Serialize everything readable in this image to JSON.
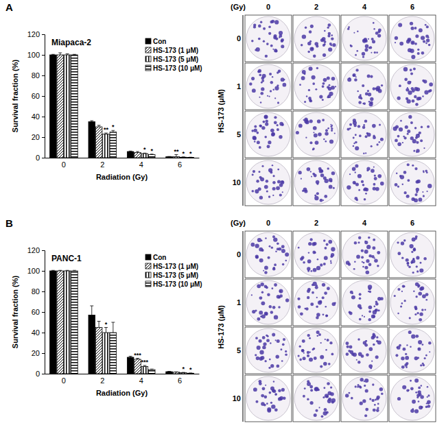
{
  "chart_data": [
    {
      "type": "bar",
      "panel": "A",
      "title": "Miapaca-2",
      "x_label": "Radiation (Gy)",
      "y_label": "Survival fraction (%)",
      "categories": [
        "0",
        "2",
        "4",
        "6"
      ],
      "ylim": [
        0,
        120
      ],
      "yticks": [
        0,
        20,
        40,
        60,
        80,
        100,
        120
      ],
      "grid": false,
      "legend": "upper right",
      "series": [
        {
          "name": "Con",
          "color": "#000000",
          "values": [
            100,
            35,
            6,
            1
          ],
          "errors": [
            0.5,
            1,
            0.5,
            0.2
          ],
          "significance": [
            null,
            null,
            null,
            null
          ]
        },
        {
          "name": "HS-173 (1 μM)",
          "color": "#000000",
          "values": [
            100,
            30,
            5,
            1
          ],
          "errors": [
            2,
            1.5,
            1,
            2
          ],
          "significance": [
            null,
            null,
            null,
            "**"
          ]
        },
        {
          "name": "HS-173 (5 μM)",
          "color": "#000000",
          "values": [
            100,
            23,
            4,
            0.5
          ],
          "errors": [
            1,
            1,
            0.5,
            0.3
          ],
          "significance": [
            null,
            "**",
            "*",
            "*"
          ]
        },
        {
          "name": "HS-173 (10 μM)",
          "color": "#000000",
          "values": [
            100,
            25,
            3,
            0.3
          ],
          "errors": [
            0.5,
            1.5,
            0.5,
            0.2
          ],
          "significance": [
            null,
            "*",
            "*",
            "*"
          ]
        }
      ],
      "plates": {
        "column_title": "(Gy)",
        "columns": [
          "0",
          "2",
          "4",
          "6"
        ],
        "row_title": "HS-173 (μM)",
        "rows": [
          "0",
          "1",
          "5",
          "10"
        ]
      }
    },
    {
      "type": "bar",
      "panel": "B",
      "title": "PANC-1",
      "x_label": "Radiation (Gy)",
      "y_label": "Survival fraction (%)",
      "categories": [
        "0",
        "2",
        "4",
        "6"
      ],
      "ylim": [
        0,
        120
      ],
      "yticks": [
        0,
        20,
        40,
        60,
        80,
        100,
        120
      ],
      "grid": false,
      "legend": "upper right",
      "series": [
        {
          "name": "Con",
          "color": "#000000",
          "values": [
            100,
            57,
            16,
            2
          ],
          "errors": [
            0.5,
            9,
            1,
            0.3
          ],
          "significance": [
            null,
            null,
            null,
            null
          ]
        },
        {
          "name": "HS-173 (1 μM)",
          "color": "#000000",
          "values": [
            100,
            45,
            14,
            1.5
          ],
          "errors": [
            0.5,
            6,
            1,
            0.3
          ],
          "significance": [
            null,
            null,
            "***",
            null
          ]
        },
        {
          "name": "HS-173 (5 μM)",
          "color": "#000000",
          "values": [
            100,
            40,
            7,
            1
          ],
          "errors": [
            0.5,
            5,
            1,
            0.3
          ],
          "significance": [
            null,
            "*",
            "***",
            "*"
          ]
        },
        {
          "name": "HS-173 (10 μM)",
          "color": "#000000",
          "values": [
            100,
            40,
            4,
            0.5
          ],
          "errors": [
            0.5,
            10,
            0.5,
            0.2
          ],
          "significance": [
            null,
            null,
            null,
            "*"
          ]
        }
      ],
      "plates": {
        "column_title": "(Gy)",
        "columns": [
          "0",
          "2",
          "4",
          "6"
        ],
        "row_title": "HS-173 (μM)",
        "rows": [
          "0",
          "1",
          "5",
          "10"
        ]
      }
    }
  ]
}
